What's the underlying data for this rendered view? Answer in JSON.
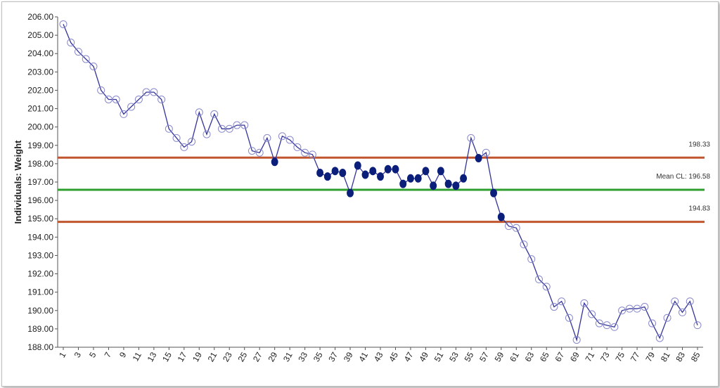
{
  "chart_data": {
    "type": "line",
    "title": "",
    "xlabel": "",
    "ylabel": "Individuals: Weight",
    "ylim": [
      188.0,
      206.0
    ],
    "y_ticks": [
      "188.00",
      "189.00",
      "190.00",
      "191.00",
      "192.00",
      "193.00",
      "194.00",
      "195.00",
      "196.00",
      "197.00",
      "198.00",
      "199.00",
      "200.00",
      "201.00",
      "202.00",
      "203.00",
      "204.00",
      "205.00",
      "206.00"
    ],
    "x_ticks": [
      "1",
      "3",
      "5",
      "7",
      "9",
      "11",
      "13",
      "15",
      "17",
      "19",
      "21",
      "23",
      "25",
      "27",
      "29",
      "31",
      "33",
      "35",
      "37",
      "39",
      "41",
      "43",
      "45",
      "47",
      "49",
      "51",
      "53",
      "55",
      "57",
      "59",
      "61",
      "63",
      "65",
      "67",
      "69",
      "71",
      "73",
      "75",
      "77",
      "79",
      "81",
      "83",
      "85"
    ],
    "x": [
      1,
      2,
      3,
      4,
      5,
      6,
      7,
      8,
      9,
      10,
      11,
      12,
      13,
      14,
      15,
      16,
      17,
      18,
      19,
      20,
      21,
      22,
      23,
      24,
      25,
      26,
      27,
      28,
      29,
      30,
      31,
      32,
      33,
      34,
      35,
      36,
      37,
      38,
      39,
      40,
      41,
      42,
      43,
      44,
      45,
      46,
      47,
      48,
      49,
      50,
      51,
      52,
      53,
      54,
      55,
      56,
      57,
      58,
      59,
      60,
      61,
      62,
      63,
      64,
      65,
      66,
      67,
      68,
      69,
      70,
      71,
      72,
      73,
      74,
      75,
      76,
      77,
      78,
      79,
      80,
      81,
      82,
      83,
      84,
      85
    ],
    "series": [
      {
        "values": [
          205.6,
          204.6,
          204.1,
          203.7,
          203.3,
          202.0,
          201.5,
          201.5,
          200.7,
          201.1,
          201.5,
          201.9,
          201.9,
          201.5,
          199.9,
          199.4,
          198.9,
          199.2,
          200.8,
          199.6,
          200.7,
          199.9,
          199.9,
          200.1,
          200.1,
          198.7,
          198.6,
          199.4,
          198.1,
          199.5,
          199.3,
          198.9,
          198.6,
          198.5,
          197.5,
          197.3,
          197.6,
          197.5,
          196.4,
          197.9,
          197.4,
          197.6,
          197.3,
          197.7,
          197.7,
          196.9,
          197.2,
          197.2,
          197.6,
          196.8,
          197.6,
          196.9,
          196.8,
          197.2,
          199.4,
          198.3,
          198.6,
          196.4,
          195.1,
          194.6,
          194.5,
          193.6,
          192.8,
          191.7,
          191.3,
          190.2,
          190.5,
          189.6,
          188.4,
          190.4,
          189.8,
          189.3,
          189.2,
          189.1,
          190.0,
          190.1,
          190.1,
          190.2,
          189.3,
          188.5,
          189.6,
          190.5,
          189.9,
          190.5,
          189.2
        ],
        "filled_points": [
          29,
          35,
          36,
          37,
          38,
          39,
          40,
          41,
          42,
          43,
          44,
          45,
          46,
          47,
          48,
          49,
          50,
          51,
          52,
          53,
          54,
          56,
          58,
          59
        ]
      }
    ],
    "control_limits": [
      {
        "label": "198.33",
        "value": 198.33,
        "color": "#c0552e"
      },
      {
        "label": "Mean CL: 196.58",
        "value": 196.58,
        "color": "#2e9e2e"
      },
      {
        "label": "194.83",
        "value": 194.83,
        "color": "#c0552e"
      }
    ],
    "line_color": "#333399",
    "marker_open_color": "#8888cc",
    "marker_filled_color": "#0b1f7a",
    "grid": false,
    "legend": "none"
  }
}
